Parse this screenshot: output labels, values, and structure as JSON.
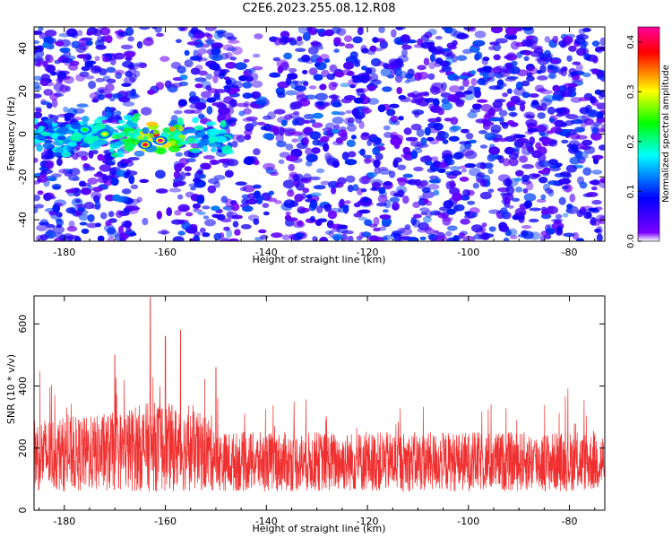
{
  "title": "C2E6.2023.255.08.12.R08",
  "chart_data": [
    {
      "type": "heatmap",
      "xlabel": "Height of straight line (km)",
      "ylabel": "Frequency (Hz)",
      "xlim": [
        -186,
        -73
      ],
      "ylim": [
        -50,
        50
      ],
      "xticks": [
        -180,
        -160,
        -140,
        -120,
        -100,
        -80
      ],
      "yticks": [
        -40,
        -20,
        0,
        20,
        40
      ],
      "grid": false,
      "colorbar": {
        "label": "Normalized spectral amplitude",
        "range": [
          0.0,
          0.43
        ],
        "ticks": [
          0.0,
          0.1,
          0.2,
          0.3,
          0.4
        ],
        "colormap": [
          "#ffffff",
          "#7a00ff",
          "#0000ff",
          "#00ffff",
          "#00ff00",
          "#ffff00",
          "#ff0000",
          "#ff00a0"
        ]
      },
      "features": [
        {
          "x_range": [
            -186,
            -147
          ],
          "frequency_center": 0,
          "peak_amplitude": 0.42,
          "peak_x": -161,
          "peak_frequency": -3
        }
      ]
    },
    {
      "type": "line",
      "xlabel": "Height of straight line (km)",
      "ylabel": "SNR (10 * v/v)",
      "xlim": [
        -186,
        -73
      ],
      "ylim": [
        0,
        690
      ],
      "xticks": [
        -180,
        -160,
        -140,
        -120,
        -100,
        -80
      ],
      "yticks": [
        0,
        200,
        400,
        600
      ],
      "grid": false,
      "series_color": "#f03030",
      "baseline_range": [
        60,
        300
      ],
      "peaks": [
        {
          "x": -163,
          "value": 685
        },
        {
          "x": -160,
          "value": 560
        },
        {
          "x": -157,
          "value": 580
        },
        {
          "x": -170,
          "value": 500
        },
        {
          "x": -150,
          "value": 460
        }
      ]
    }
  ]
}
